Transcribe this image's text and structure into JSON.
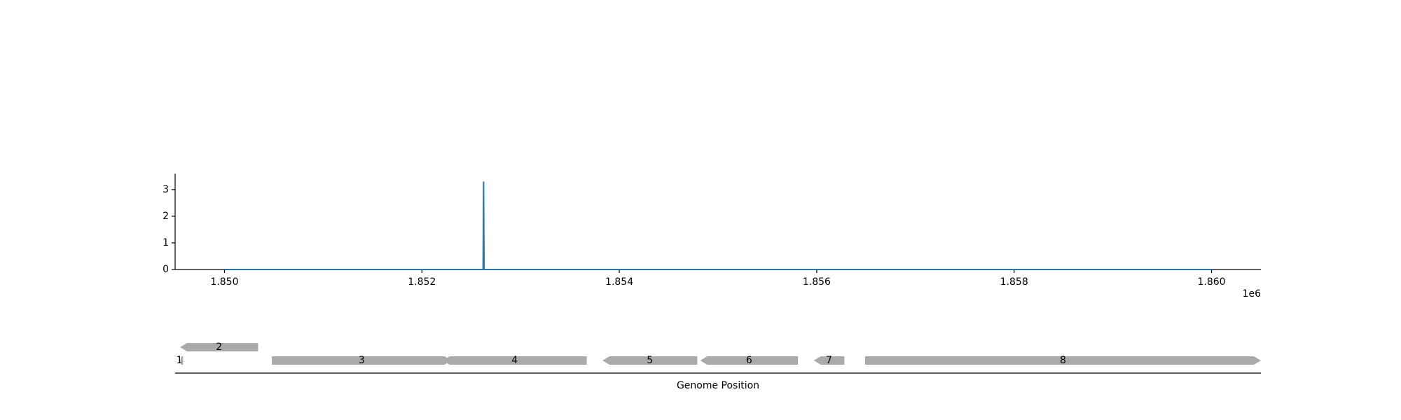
{
  "chart_data": [
    {
      "type": "line",
      "title": "",
      "xlabel": "",
      "ylabel": "",
      "x_offset_label": "1e6",
      "xlim": [
        1849500,
        1860500
      ],
      "ylim": [
        0,
        3.6
      ],
      "x_ticks": [
        1850000,
        1852000,
        1854000,
        1856000,
        1858000,
        1860000
      ],
      "x_tick_labels": [
        "1.850",
        "1.852",
        "1.854",
        "1.856",
        "1.858",
        "1.860"
      ],
      "y_ticks": [
        0,
        1,
        2,
        3
      ],
      "y_tick_labels": [
        "0",
        "1",
        "2",
        "3"
      ],
      "grid": false,
      "color": "#1f77b4",
      "series": [
        {
          "x": [
            1850000,
            1852620,
            1852625,
            1852630,
            1860000
          ],
          "y": [
            0,
            0,
            3.3,
            0,
            0
          ]
        }
      ]
    },
    {
      "type": "gene_track",
      "xlabel": "Genome Position",
      "xlim": [
        1849500,
        1860500
      ],
      "color": "#aaaaaa",
      "genes": [
        {
          "label": "1",
          "start": 1849550,
          "end": 1849580,
          "strand": -1,
          "row": 0
        },
        {
          "label": "2",
          "start": 1849550,
          "end": 1850340,
          "strand": -1,
          "row": 1
        },
        {
          "label": "3",
          "start": 1850480,
          "end": 1852300,
          "strand": 1,
          "row": 0
        },
        {
          "label": "4",
          "start": 1852210,
          "end": 1853670,
          "strand": -1,
          "row": 0
        },
        {
          "label": "5",
          "start": 1853830,
          "end": 1854790,
          "strand": -1,
          "row": 0
        },
        {
          "label": "6",
          "start": 1854820,
          "end": 1855810,
          "strand": -1,
          "row": 0
        },
        {
          "label": "7",
          "start": 1855970,
          "end": 1856280,
          "strand": -1,
          "row": 0
        },
        {
          "label": "8",
          "start": 1856490,
          "end": 1860500,
          "strand": 1,
          "row": 0
        }
      ]
    }
  ]
}
